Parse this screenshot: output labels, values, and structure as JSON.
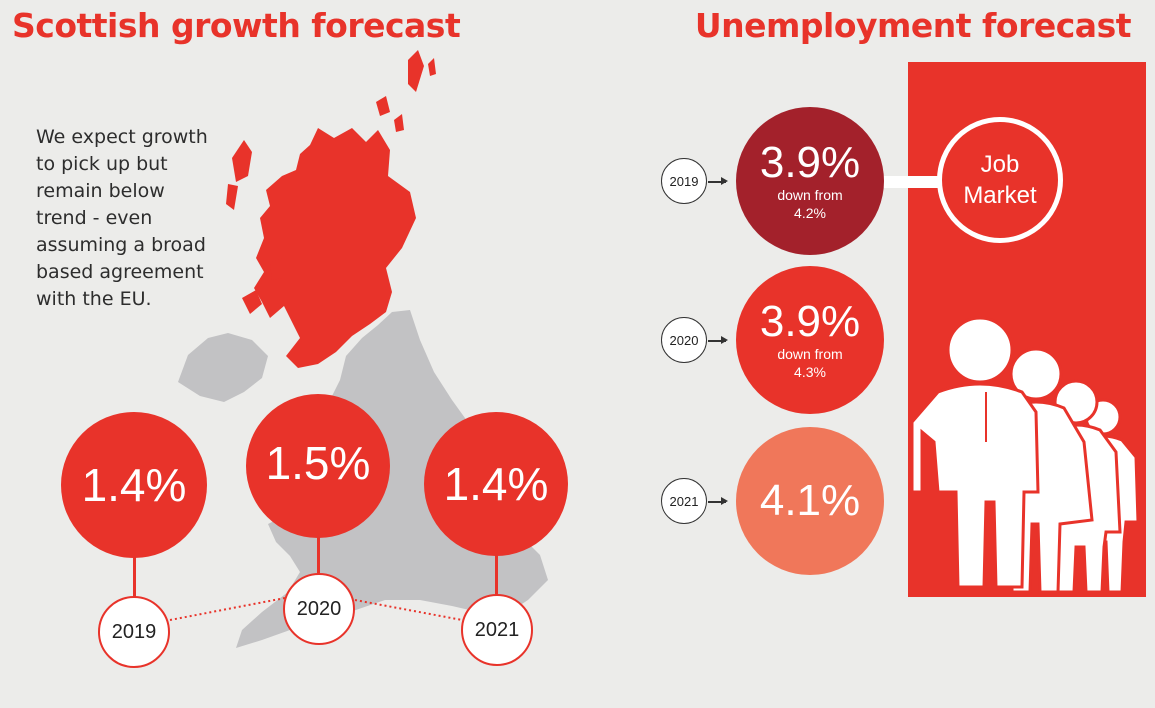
{
  "growth": {
    "title": "Scottish growth forecast",
    "description": "We expect growth to pick up but remain below trend - even assuming a broad based agreement with the EU."
  },
  "unemployment": {
    "title": "Unemployment forecast",
    "job_market_line1": "Job",
    "job_market_line2": "Market"
  },
  "chart_data": [
    {
      "type": "bar",
      "title": "Scottish growth forecast",
      "categories": [
        "2019",
        "2020",
        "2021"
      ],
      "values": [
        1.4,
        1.5,
        1.4
      ],
      "labels": [
        "1.4%",
        "1.5%",
        "1.4%"
      ]
    },
    {
      "type": "table",
      "title": "Unemployment forecast",
      "categories": [
        "2019",
        "2020",
        "2021"
      ],
      "values": [
        3.9,
        3.9,
        4.1
      ],
      "labels": [
        "3.9%",
        "3.9%",
        "4.1%"
      ],
      "notes": [
        "down from",
        "down from",
        ""
      ],
      "previous": [
        "4.2%",
        "4.3%",
        ""
      ],
      "colors": [
        "#a3212b",
        "#e8332a",
        "#f0775a"
      ]
    }
  ],
  "colors": {
    "accent": "#e8332a",
    "map_grey": "#c2c2c4",
    "background": "#ececea"
  }
}
